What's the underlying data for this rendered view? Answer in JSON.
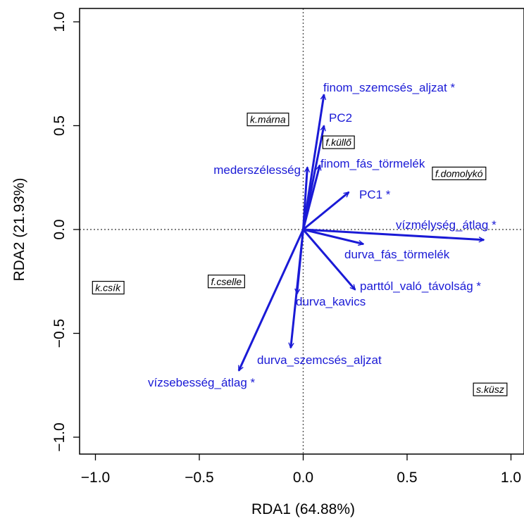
{
  "chart_data": {
    "type": "scatter",
    "subtype": "rda-triplot",
    "title": "",
    "xlabel": "RDA1 (64.88%)",
    "ylabel": "RDA2 (21.93%)",
    "xlim": [
      -1.1,
      1.08
    ],
    "ylim": [
      -1.08,
      1.08
    ],
    "xticks": [
      -1.0,
      -0.5,
      0.0,
      0.5,
      1.0
    ],
    "xtick_labels": [
      "−1.0",
      "−0.5",
      "0.0",
      "0.5",
      "1.0"
    ],
    "yticks": [
      -1.0,
      -0.5,
      0.0,
      0.5,
      1.0
    ],
    "ytick_labels": [
      "−1.0",
      "−0.5",
      "0.0",
      "0.5",
      "1.0"
    ],
    "origin_lines": "dotted",
    "grid": false,
    "colors": {
      "arrows": "#1a1ad6",
      "axes": "#000000",
      "origin_lines": "#555555"
    },
    "arrows": [
      {
        "label": "finom_szemcsés_aljzat *",
        "x": 0.1,
        "y": 0.65
      },
      {
        "label": "PC2",
        "x": 0.1,
        "y": 0.5
      },
      {
        "label": "mederszélesség",
        "x": 0.02,
        "y": 0.3
      },
      {
        "label": "finom_fás_törmelék",
        "x": 0.08,
        "y": 0.31
      },
      {
        "label": "PC1 *",
        "x": 0.22,
        "y": 0.18
      },
      {
        "label": "vízmélység_átlag *",
        "x": 0.87,
        "y": -0.05
      },
      {
        "label": "durva_fás_törmelék",
        "x": 0.29,
        "y": -0.07
      },
      {
        "label": "parttól_való_távolság *",
        "x": 0.25,
        "y": -0.29
      },
      {
        "label": "durva_kavics",
        "x": -0.03,
        "y": -0.31
      },
      {
        "label": "durva_szemcsés_aljzat",
        "x": -0.06,
        "y": -0.57
      },
      {
        "label": "vízsebesség_átlag *",
        "x": -0.31,
        "y": -0.68
      }
    ],
    "sites": [
      {
        "label": "k.márna",
        "x": -0.17,
        "y": 0.53
      },
      {
        "label": "f.küllő",
        "x": 0.17,
        "y": 0.42
      },
      {
        "label": "f.domolykó",
        "x": 0.75,
        "y": 0.27
      },
      {
        "label": "k.csík",
        "x": -0.94,
        "y": -0.28
      },
      {
        "label": "f.cselle",
        "x": -0.37,
        "y": -0.25
      },
      {
        "label": "s.küsz",
        "x": 0.9,
        "y": -0.77
      }
    ]
  }
}
